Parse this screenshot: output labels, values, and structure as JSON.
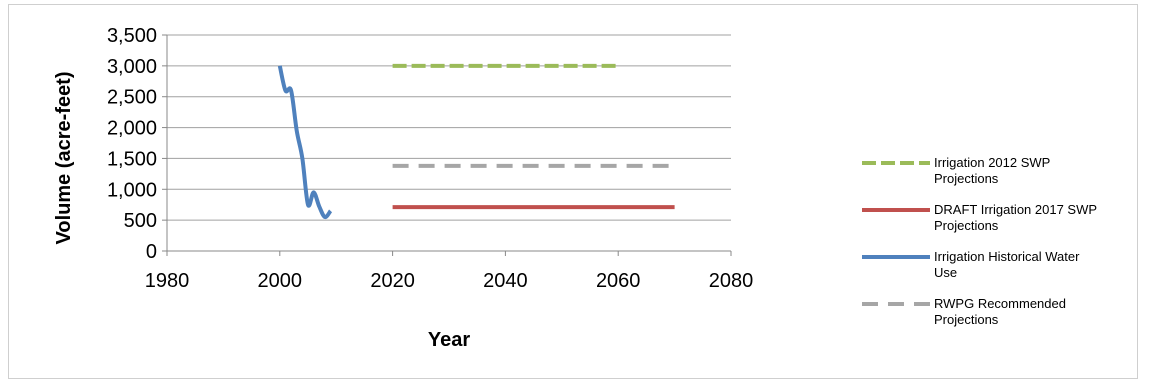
{
  "chart_data": {
    "type": "line",
    "title": "",
    "xlabel": "Year",
    "ylabel": "Volume (acre-feet)",
    "xlim": [
      1980,
      2080
    ],
    "ylim": [
      0,
      3500
    ],
    "x_ticks": [
      1980,
      2000,
      2020,
      2040,
      2060,
      2080
    ],
    "x_tick_labels": [
      "1980",
      "2000",
      "2020",
      "2040",
      "2060",
      "2080"
    ],
    "y_ticks": [
      0,
      500,
      1000,
      1500,
      2000,
      2500,
      3000,
      3500
    ],
    "y_tick_labels": [
      "0",
      "500",
      "1,000",
      "1,500",
      "2,000",
      "2,500",
      "3,000",
      "3,500"
    ],
    "grid": "horizontal",
    "legend_position": "right",
    "series": [
      {
        "name": "Irrigation 2012 SWP Projections",
        "color": "#9bbb59",
        "style": "dashed",
        "x": [
          2020,
          2030,
          2040,
          2050,
          2060
        ],
        "y": [
          3000,
          3000,
          3000,
          3000,
          3000
        ]
      },
      {
        "name": "DRAFT Irrigation 2017 SWP Projections",
        "color": "#c0504d",
        "style": "solid",
        "x": [
          2020,
          2030,
          2040,
          2050,
          2060,
          2070
        ],
        "y": [
          710,
          710,
          710,
          710,
          710,
          710
        ]
      },
      {
        "name": "Irrigation Historical Water Use",
        "color": "#4f81bd",
        "style": "solid",
        "x": [
          2000,
          2001,
          2002,
          2003,
          2004,
          2005,
          2006,
          2007,
          2008,
          2009
        ],
        "y": [
          3000,
          2600,
          2600,
          1950,
          1500,
          750,
          950,
          720,
          550,
          650
        ]
      },
      {
        "name": "RWPG Recommended Projections",
        "color": "#a6a6a6",
        "style": "long-dashed",
        "x": [
          2020,
          2030,
          2040,
          2050,
          2060,
          2070
        ],
        "y": [
          1380,
          1380,
          1380,
          1380,
          1380,
          1380
        ]
      }
    ]
  }
}
